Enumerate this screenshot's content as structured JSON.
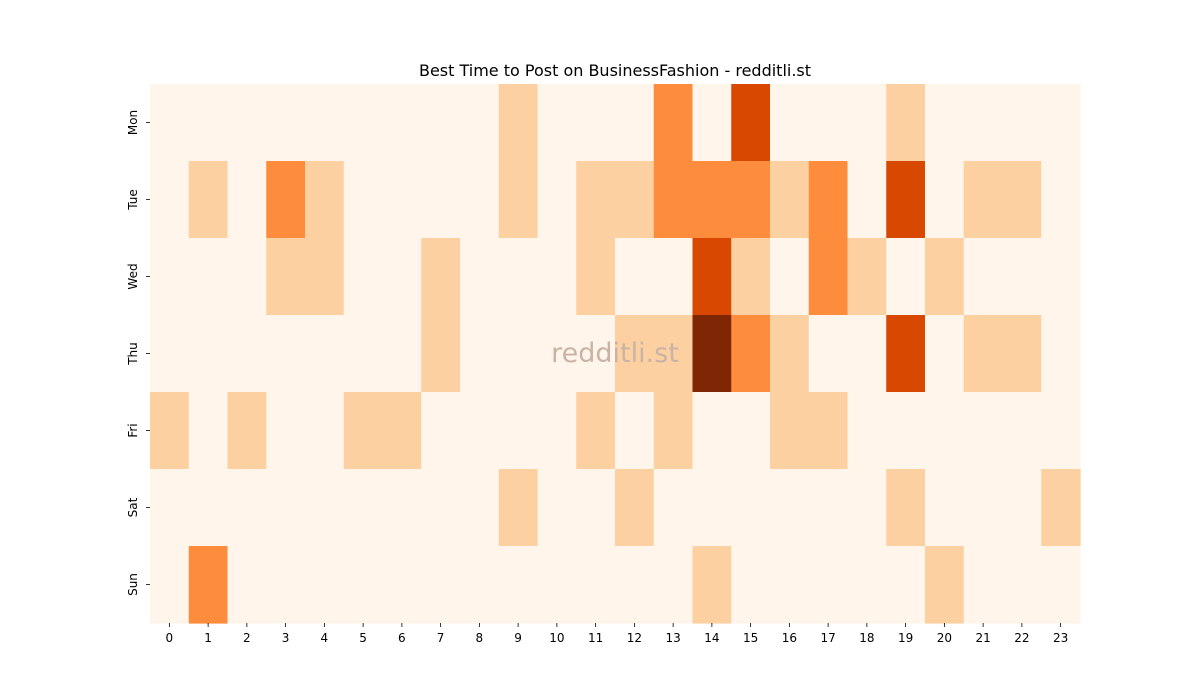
{
  "chart_data": {
    "type": "heatmap",
    "title": "Best Time to Post on BusinessFashion - redditli.st",
    "watermark": "redditli.st",
    "x_labels": [
      "0",
      "1",
      "2",
      "3",
      "4",
      "5",
      "6",
      "7",
      "8",
      "9",
      "10",
      "11",
      "12",
      "13",
      "14",
      "15",
      "16",
      "17",
      "18",
      "19",
      "20",
      "21",
      "22",
      "23"
    ],
    "y_labels": [
      "Mon",
      "Tue",
      "Wed",
      "Thu",
      "Fri",
      "Sat",
      "Sun"
    ],
    "values": [
      [
        0,
        0,
        0,
        0,
        0,
        0,
        0,
        0,
        0,
        1,
        0,
        0,
        0,
        2,
        0,
        3,
        0,
        0,
        0,
        1,
        0,
        0,
        0,
        0
      ],
      [
        0,
        1,
        0,
        2,
        1,
        0,
        0,
        0,
        0,
        1,
        0,
        1,
        1,
        2,
        2,
        2,
        1,
        2,
        0,
        3,
        0,
        1,
        1,
        0
      ],
      [
        0,
        0,
        0,
        1,
        1,
        0,
        0,
        1,
        0,
        0,
        0,
        1,
        0,
        0,
        3,
        1,
        0,
        2,
        1,
        0,
        1,
        0,
        0,
        0
      ],
      [
        0,
        0,
        0,
        0,
        0,
        0,
        0,
        1,
        0,
        0,
        0,
        0,
        1,
        1,
        4,
        2,
        1,
        0,
        0,
        3,
        0,
        1,
        1,
        0
      ],
      [
        1,
        0,
        1,
        0,
        0,
        1,
        1,
        0,
        0,
        0,
        0,
        1,
        0,
        1,
        0,
        0,
        1,
        1,
        0,
        0,
        0,
        0,
        0,
        0
      ],
      [
        0,
        0,
        0,
        0,
        0,
        0,
        0,
        0,
        0,
        1,
        0,
        0,
        1,
        0,
        0,
        0,
        0,
        0,
        0,
        1,
        0,
        0,
        0,
        1
      ],
      [
        0,
        2,
        0,
        0,
        0,
        0,
        0,
        0,
        0,
        0,
        0,
        0,
        0,
        0,
        1,
        0,
        0,
        0,
        0,
        0,
        1,
        0,
        0,
        0
      ]
    ],
    "colors": [
      "#fff5eb",
      "#fdd0a2",
      "#fd8d3c",
      "#d94801",
      "#7f2704"
    ],
    "grid": false,
    "legend": "none"
  }
}
